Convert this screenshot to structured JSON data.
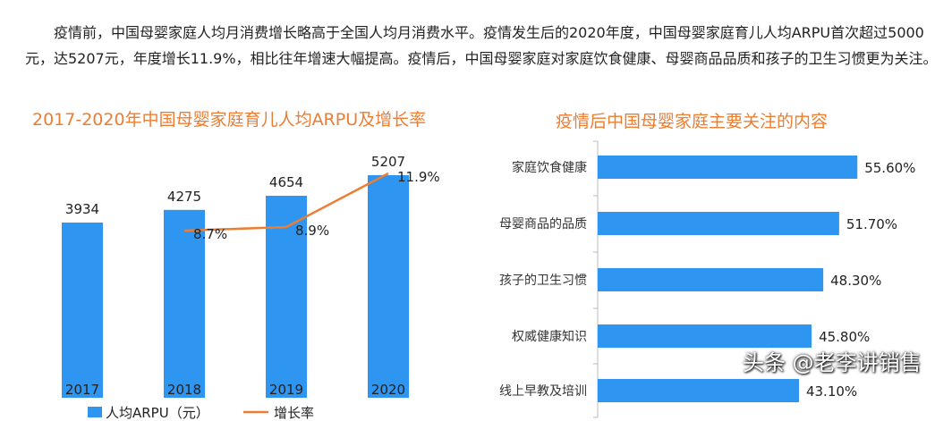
{
  "paragraph": "疫情前，中国母婴家庭人均月消费增长略高于全国人均月消费水平。疫情发生后的2020年度，中国母婴家庭育儿人均ARPU首次超过5000元，达5207元，年度增长11.9%，相比往年增速大幅提高。疫情后，中国母婴家庭对家庭饮食健康、母婴商品品质和孩子的卫生习惯更为关注。",
  "watermark": "头条 @老李讲销售",
  "chart_data": [
    {
      "type": "bar+line",
      "title": "2017-2020年中国母婴家庭育儿人均ARPU及增长率",
      "categories": [
        "2017",
        "2018",
        "2019",
        "2020"
      ],
      "series": [
        {
          "name": "人均ARPU（元）",
          "type": "bar",
          "color": "#2E95F0",
          "values": [
            3934,
            4275,
            4654,
            5207
          ],
          "labels": [
            "3934",
            "4275",
            "4654",
            "5207"
          ]
        },
        {
          "name": "增长率",
          "type": "line",
          "color": "#ED7D31",
          "values": [
            null,
            8.7,
            8.9,
            11.9
          ],
          "labels": [
            "",
            "8.7%",
            "8.9%",
            "11.9%"
          ]
        }
      ],
      "legend": "bottom",
      "grid": false
    },
    {
      "type": "bar",
      "orientation": "horizontal",
      "title": "疫情后中国母婴家庭主要关注的内容",
      "categories": [
        "家庭饮食健康",
        "母婴商品的品质",
        "孩子的卫生习惯",
        "权威健康知识",
        "线上早教及培训"
      ],
      "values": [
        55.6,
        51.7,
        48.3,
        45.8,
        43.1
      ],
      "labels": [
        "55.60%",
        "51.70%",
        "48.30%",
        "45.80%",
        "43.10%"
      ],
      "color": "#2E95F0",
      "grid": false
    }
  ]
}
